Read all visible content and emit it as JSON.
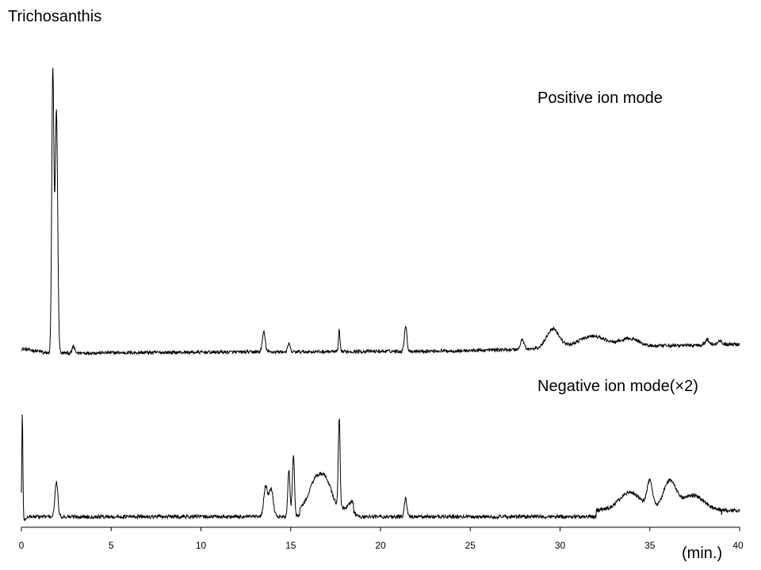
{
  "chart_data": {
    "type": "line",
    "title": "Trichosanthis",
    "xlabel": "(min.)",
    "ylabel": "",
    "xlim": [
      0,
      40
    ],
    "x_ticks": [
      0,
      5,
      10,
      15,
      20,
      25,
      30,
      35,
      40
    ],
    "x_tick_labels": [
      "0",
      "5",
      "10",
      "15",
      "20",
      "25",
      "30",
      "35",
      "40"
    ],
    "grid": false,
    "series": [
      {
        "name": "Positive ion mode",
        "color": "#000000",
        "peaks": [
          {
            "t": 1.75,
            "h": 100,
            "w": 0.06
          },
          {
            "t": 1.95,
            "h": 86,
            "w": 0.07
          },
          {
            "t": 2.9,
            "h": 2.5,
            "w": 0.06
          },
          {
            "t": 13.5,
            "h": 7,
            "w": 0.08
          },
          {
            "t": 14.9,
            "h": 3,
            "w": 0.06
          },
          {
            "t": 17.7,
            "h": 7.5,
            "w": 0.04
          },
          {
            "t": 21.4,
            "h": 9,
            "w": 0.07
          },
          {
            "t": 27.9,
            "h": 3.5,
            "w": 0.1
          },
          {
            "t": 29.6,
            "h": 7,
            "w": 0.35
          },
          {
            "t": 31.8,
            "h": 4,
            "w": 0.8
          },
          {
            "t": 33.9,
            "h": 2.8,
            "w": 0.5
          },
          {
            "t": 38.2,
            "h": 1.8,
            "w": 0.12
          },
          {
            "t": 38.9,
            "h": 1.5,
            "w": 0.12
          }
        ]
      },
      {
        "name": "Negative ion mode(×2)",
        "color": "#000000",
        "peaks": [
          {
            "t": 0.05,
            "h": 100,
            "w": 0.03
          },
          {
            "t": 1.95,
            "h": 33,
            "w": 0.08
          },
          {
            "t": 13.6,
            "h": 28,
            "w": 0.1
          },
          {
            "t": 13.9,
            "h": 26,
            "w": 0.12
          },
          {
            "t": 14.9,
            "h": 44,
            "w": 0.06
          },
          {
            "t": 15.15,
            "h": 58,
            "w": 0.06
          },
          {
            "t": 16.4,
            "h": 27,
            "w": 0.35
          },
          {
            "t": 17.0,
            "h": 22,
            "w": 0.3
          },
          {
            "t": 17.7,
            "h": 85,
            "w": 0.05
          },
          {
            "t": 18.4,
            "h": 6,
            "w": 0.15
          },
          {
            "t": 21.4,
            "h": 17,
            "w": 0.07
          },
          {
            "t": 33.9,
            "h": 17,
            "w": 0.6
          },
          {
            "t": 35.0,
            "h": 25,
            "w": 0.15
          },
          {
            "t": 36.1,
            "h": 27,
            "w": 0.35
          },
          {
            "t": 37.4,
            "h": 14,
            "w": 0.6
          }
        ]
      }
    ]
  }
}
